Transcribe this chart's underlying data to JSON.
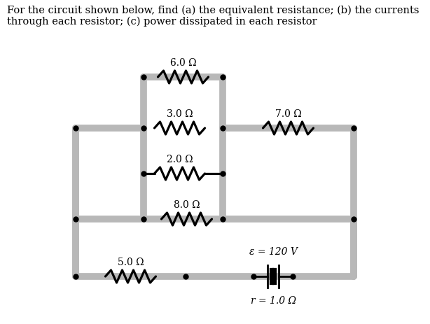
{
  "title_line1": "For the circuit shown below, find (a) the equivalent resistance; (b) the currents",
  "title_line2": "through each resistor; (c) power dissipated in each resistor",
  "resistors": {
    "R6": {
      "label": "6.0 Ω"
    },
    "R3": {
      "label": "3.0 Ω"
    },
    "R2": {
      "label": "2.0 Ω"
    },
    "R7": {
      "label": "7.0 Ω"
    },
    "R8": {
      "label": "8.0 Ω"
    },
    "R5": {
      "label": "5.0 Ω"
    },
    "Rr": {
      "label": "r = 1.0 Ω"
    }
  },
  "emf_label": "ε = 120 V",
  "wire_color": "#b8b8b8",
  "wire_linewidth": 7,
  "component_color": "#000000",
  "dot_color": "#000000",
  "background": "#ffffff",
  "text_fontsize": 10.5,
  "label_fontsize": 10
}
